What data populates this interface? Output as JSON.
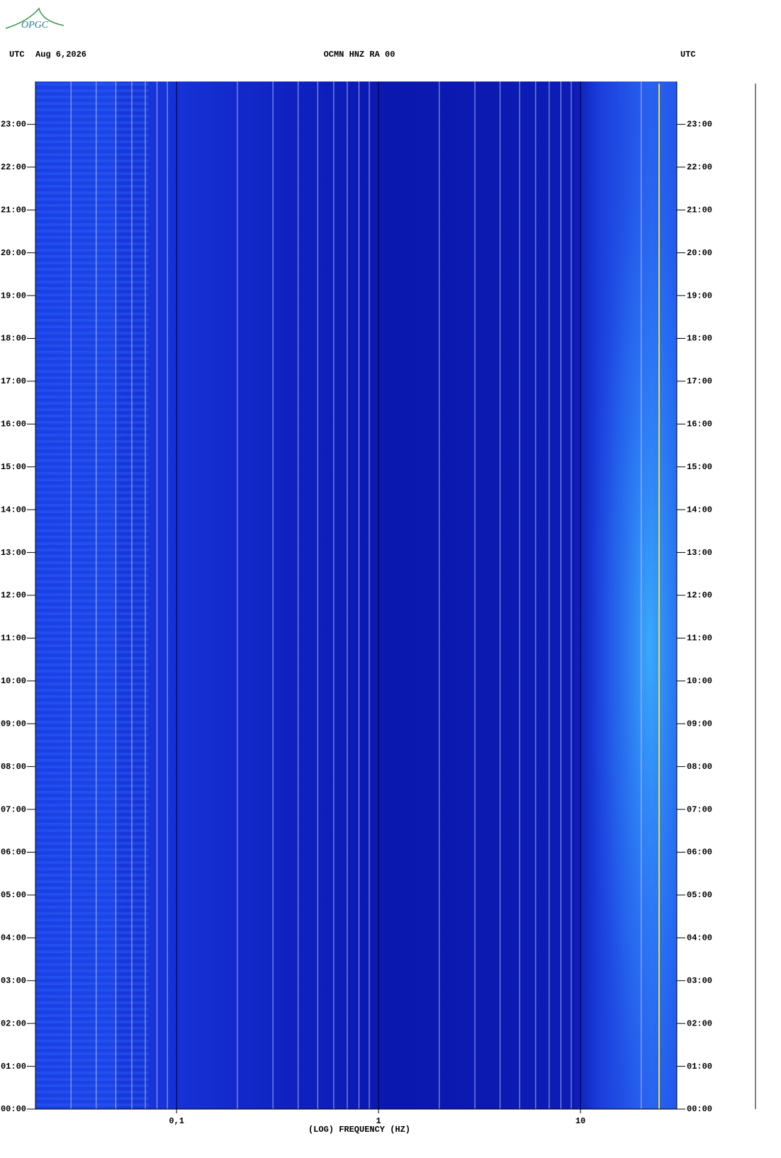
{
  "logo": "OPGC",
  "header": {
    "zone_left": "UTC",
    "date": "Aug 6,2026",
    "station": "OCMN HNZ RA 00",
    "zone_right": "UTC"
  },
  "chart_data": {
    "type": "spectrogram",
    "xlabel": "(LOG) FREQUENCY (HZ)",
    "xscale": "log",
    "xlim": [
      0.02,
      30
    ],
    "xticks": [
      {
        "value": 0.1,
        "label": "0,1"
      },
      1,
      10
    ],
    "ylim": [
      0,
      24
    ],
    "yticks": [
      {
        "value": 0,
        "label": "00:00"
      },
      {
        "value": 1,
        "label": "01:00"
      },
      {
        "value": 2,
        "label": "02:00"
      },
      {
        "value": 3,
        "label": "03:00"
      },
      {
        "value": 4,
        "label": "04:00"
      },
      {
        "value": 5,
        "label": "05:00"
      },
      {
        "value": 6,
        "label": "06:00"
      },
      {
        "value": 7,
        "label": "07:00"
      },
      {
        "value": 8,
        "label": "08:00"
      },
      {
        "value": 9,
        "label": "09:00"
      },
      {
        "value": 10,
        "label": "10:00"
      },
      {
        "value": 11,
        "label": "11:00"
      },
      {
        "value": 12,
        "label": "12:00"
      },
      {
        "value": 13,
        "label": "13:00"
      },
      {
        "value": 14,
        "label": "14:00"
      },
      {
        "value": 15,
        "label": "15:00"
      },
      {
        "value": 16,
        "label": "16:00"
      },
      {
        "value": 17,
        "label": "17:00"
      },
      {
        "value": 18,
        "label": "18:00"
      },
      {
        "value": 19,
        "label": "19:00"
      },
      {
        "value": 20,
        "label": "20:00"
      },
      {
        "value": 21,
        "label": "21:00"
      },
      {
        "value": 22,
        "label": "22:00"
      },
      {
        "value": 23,
        "label": "23:00"
      }
    ],
    "grid": true
  }
}
